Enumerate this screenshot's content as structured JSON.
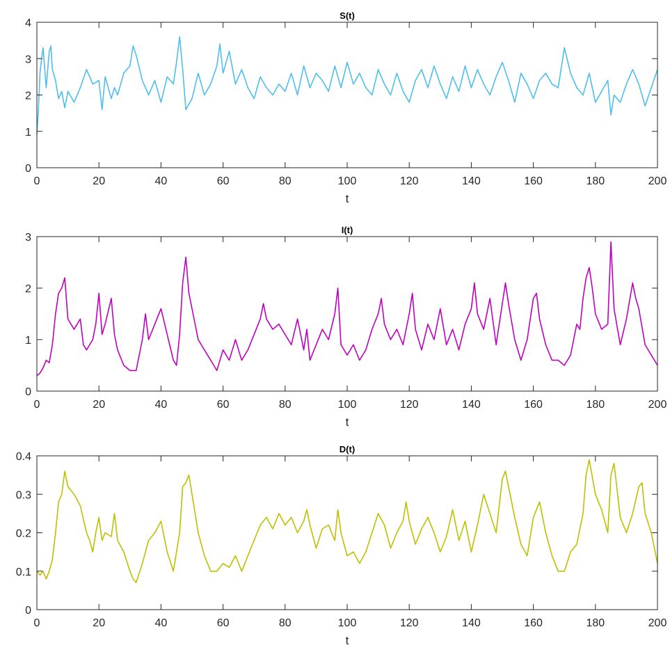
{
  "chart_data": [
    {
      "type": "line",
      "title": "S(t)",
      "xlabel": "t",
      "ylabel": "",
      "xlim": [
        0,
        200
      ],
      "ylim": [
        0,
        4
      ],
      "xticks": [
        0,
        20,
        40,
        60,
        80,
        100,
        120,
        140,
        160,
        180,
        200
      ],
      "yticks": [
        0,
        1,
        2,
        3,
        4
      ],
      "ytick_labels": [
        "0",
        "1",
        "2",
        "3",
        "4"
      ],
      "color": "#4DBEEE",
      "grid": false,
      "x": [
        0,
        0.5,
        1,
        1.5,
        2,
        3,
        4,
        4.5,
        5,
        6,
        7,
        8,
        9,
        10,
        12,
        14,
        16,
        18,
        20,
        21,
        22,
        24,
        25,
        26,
        28,
        30,
        31,
        32,
        34,
        36,
        38,
        40,
        42,
        44,
        45,
        46,
        47,
        48,
        50,
        52,
        54,
        56,
        58,
        59,
        60,
        62,
        64,
        66,
        68,
        70,
        72,
        74,
        76,
        78,
        80,
        82,
        84,
        86,
        88,
        90,
        92,
        94,
        96,
        98,
        100,
        102,
        104,
        106,
        108,
        110,
        112,
        114,
        116,
        118,
        120,
        122,
        124,
        126,
        128,
        130,
        132,
        134,
        136,
        138,
        140,
        142,
        144,
        146,
        148,
        150,
        152,
        154,
        156,
        158,
        160,
        162,
        164,
        166,
        168,
        170,
        172,
        174,
        176,
        178,
        180,
        182,
        184,
        185,
        186,
        188,
        190,
        192,
        194,
        196,
        198,
        200
      ],
      "y": [
        0.9,
        1.6,
        2.6,
        3.0,
        3.3,
        2.2,
        3.2,
        3.35,
        2.7,
        2.4,
        1.9,
        2.1,
        1.65,
        2.1,
        1.8,
        2.2,
        2.7,
        2.3,
        2.4,
        1.6,
        2.5,
        1.9,
        2.2,
        2.0,
        2.6,
        2.8,
        3.35,
        3.1,
        2.4,
        2.0,
        2.4,
        1.8,
        2.5,
        2.3,
        2.9,
        3.6,
        2.7,
        1.6,
        1.9,
        2.6,
        2.0,
        2.3,
        2.8,
        3.4,
        2.6,
        3.2,
        2.3,
        2.7,
        2.2,
        1.9,
        2.5,
        2.2,
        2.0,
        2.3,
        2.1,
        2.6,
        2.0,
        2.8,
        2.2,
        2.6,
        2.4,
        2.1,
        2.8,
        2.2,
        2.9,
        2.3,
        2.6,
        2.2,
        2.0,
        2.7,
        2.3,
        2.0,
        2.6,
        2.1,
        1.8,
        2.4,
        2.7,
        2.2,
        2.8,
        2.3,
        1.9,
        2.5,
        2.1,
        2.8,
        2.2,
        2.7,
        2.3,
        2.0,
        2.5,
        2.9,
        2.4,
        1.8,
        2.6,
        2.3,
        1.9,
        2.4,
        2.6,
        2.3,
        2.2,
        3.3,
        2.6,
        2.2,
        2.0,
        2.6,
        1.8,
        2.1,
        2.4,
        1.45,
        2.0,
        1.8,
        2.3,
        2.7,
        2.3,
        1.7,
        2.2,
        2.7
      ]
    },
    {
      "type": "line",
      "title": "I(t)",
      "xlabel": "t",
      "ylabel": "",
      "xlim": [
        0,
        200
      ],
      "ylim": [
        0,
        3
      ],
      "xticks": [
        0,
        20,
        40,
        60,
        80,
        100,
        120,
        140,
        160,
        180,
        200
      ],
      "yticks": [
        0,
        1,
        2,
        3
      ],
      "ytick_labels": [
        "0",
        "1",
        "2",
        "3"
      ],
      "color": "#BF00BF",
      "grid": false,
      "x": [
        0,
        1,
        2,
        3,
        4,
        5,
        6,
        7,
        8,
        9,
        10,
        12,
        14,
        15,
        16,
        18,
        19,
        20,
        21,
        22,
        24,
        25,
        26,
        28,
        30,
        32,
        34,
        35,
        36,
        38,
        40,
        42,
        44,
        45,
        46,
        47,
        48,
        49,
        50,
        52,
        54,
        56,
        58,
        60,
        62,
        63,
        64,
        66,
        68,
        70,
        72,
        73,
        74,
        76,
        78,
        80,
        82,
        84,
        86,
        87,
        88,
        90,
        92,
        94,
        96,
        97,
        98,
        100,
        102,
        104,
        106,
        108,
        110,
        111,
        112,
        114,
        116,
        118,
        120,
        121,
        122,
        124,
        126,
        128,
        130,
        132,
        134,
        136,
        138,
        140,
        141,
        142,
        144,
        146,
        148,
        150,
        151,
        152,
        154,
        156,
        158,
        160,
        161,
        162,
        164,
        166,
        168,
        170,
        172,
        174,
        175,
        176,
        177,
        178,
        179,
        180,
        182,
        184,
        185,
        186,
        188,
        190,
        192,
        193,
        194,
        196,
        198,
        200
      ],
      "y": [
        0.3,
        0.35,
        0.45,
        0.6,
        0.55,
        0.9,
        1.5,
        1.9,
        2.0,
        2.2,
        1.4,
        1.2,
        1.4,
        0.9,
        0.8,
        1.0,
        1.3,
        1.9,
        1.1,
        1.3,
        1.8,
        1.1,
        0.8,
        0.5,
        0.4,
        0.4,
        1.0,
        1.5,
        1.0,
        1.3,
        1.6,
        1.1,
        0.6,
        0.5,
        1.1,
        2.1,
        2.6,
        1.9,
        1.6,
        1.0,
        0.8,
        0.6,
        0.4,
        0.8,
        0.6,
        0.8,
        1.0,
        0.6,
        0.8,
        1.1,
        1.4,
        1.7,
        1.4,
        1.2,
        1.3,
        1.1,
        0.9,
        1.4,
        0.8,
        1.2,
        0.6,
        0.9,
        1.2,
        1.0,
        1.5,
        2.0,
        0.9,
        0.7,
        0.9,
        0.6,
        0.8,
        1.2,
        1.5,
        1.8,
        1.3,
        1.0,
        1.2,
        0.9,
        1.5,
        1.9,
        1.2,
        0.8,
        1.3,
        1.0,
        1.6,
        0.9,
        1.2,
        0.8,
        1.3,
        1.6,
        2.1,
        1.5,
        1.2,
        1.8,
        0.9,
        1.7,
        2.1,
        1.7,
        1.0,
        0.6,
        1.0,
        1.8,
        1.9,
        1.4,
        0.9,
        0.6,
        0.6,
        0.5,
        0.7,
        1.3,
        1.2,
        1.8,
        2.2,
        2.4,
        2.0,
        1.5,
        1.2,
        1.3,
        2.9,
        1.6,
        0.9,
        1.4,
        2.1,
        1.8,
        1.6,
        0.9,
        0.7,
        0.5
      ]
    },
    {
      "type": "line",
      "title": "D(t)",
      "xlabel": "t",
      "ylabel": "",
      "xlim": [
        0,
        200
      ],
      "ylim": [
        0,
        0.4
      ],
      "xticks": [
        0,
        20,
        40,
        60,
        80,
        100,
        120,
        140,
        160,
        180,
        200
      ],
      "yticks": [
        0,
        0.1,
        0.2,
        0.3,
        0.4
      ],
      "ytick_labels": [
        "0",
        "0.1",
        "0.2",
        "0.3",
        "0.4"
      ],
      "color": "#BFBF00",
      "grid": false,
      "x": [
        0,
        1,
        2,
        3,
        4,
        5,
        6,
        7,
        8,
        9,
        10,
        12,
        14,
        16,
        17,
        18,
        19,
        20,
        21,
        22,
        24,
        25,
        26,
        28,
        30,
        31,
        32,
        34,
        36,
        38,
        40,
        42,
        44,
        46,
        47,
        48,
        49,
        50,
        52,
        54,
        56,
        58,
        60,
        62,
        64,
        66,
        68,
        70,
        72,
        74,
        76,
        78,
        80,
        82,
        84,
        86,
        87,
        88,
        90,
        92,
        94,
        96,
        97,
        98,
        100,
        102,
        104,
        106,
        108,
        110,
        112,
        114,
        116,
        118,
        119,
        120,
        122,
        124,
        126,
        128,
        130,
        132,
        134,
        136,
        138,
        140,
        142,
        144,
        146,
        148,
        150,
        151,
        152,
        154,
        156,
        158,
        160,
        162,
        164,
        166,
        168,
        170,
        172,
        174,
        176,
        177,
        178,
        180,
        182,
        184,
        185,
        186,
        188,
        190,
        192,
        194,
        195,
        196,
        198,
        200
      ],
      "y": [
        0.1,
        0.09,
        0.1,
        0.08,
        0.1,
        0.13,
        0.2,
        0.28,
        0.3,
        0.36,
        0.32,
        0.3,
        0.27,
        0.2,
        0.18,
        0.15,
        0.2,
        0.24,
        0.18,
        0.2,
        0.19,
        0.25,
        0.18,
        0.15,
        0.1,
        0.08,
        0.07,
        0.12,
        0.18,
        0.2,
        0.23,
        0.15,
        0.1,
        0.2,
        0.32,
        0.33,
        0.35,
        0.3,
        0.2,
        0.14,
        0.1,
        0.1,
        0.12,
        0.11,
        0.14,
        0.1,
        0.14,
        0.18,
        0.22,
        0.24,
        0.21,
        0.25,
        0.22,
        0.24,
        0.2,
        0.23,
        0.26,
        0.22,
        0.16,
        0.21,
        0.22,
        0.18,
        0.26,
        0.2,
        0.14,
        0.15,
        0.12,
        0.15,
        0.2,
        0.25,
        0.22,
        0.16,
        0.2,
        0.23,
        0.28,
        0.23,
        0.17,
        0.21,
        0.24,
        0.2,
        0.15,
        0.19,
        0.26,
        0.18,
        0.23,
        0.15,
        0.22,
        0.3,
        0.25,
        0.2,
        0.34,
        0.36,
        0.32,
        0.24,
        0.17,
        0.14,
        0.24,
        0.28,
        0.2,
        0.14,
        0.1,
        0.1,
        0.15,
        0.17,
        0.25,
        0.35,
        0.39,
        0.3,
        0.26,
        0.2,
        0.35,
        0.38,
        0.24,
        0.2,
        0.25,
        0.32,
        0.33,
        0.25,
        0.2,
        0.12
      ]
    }
  ]
}
